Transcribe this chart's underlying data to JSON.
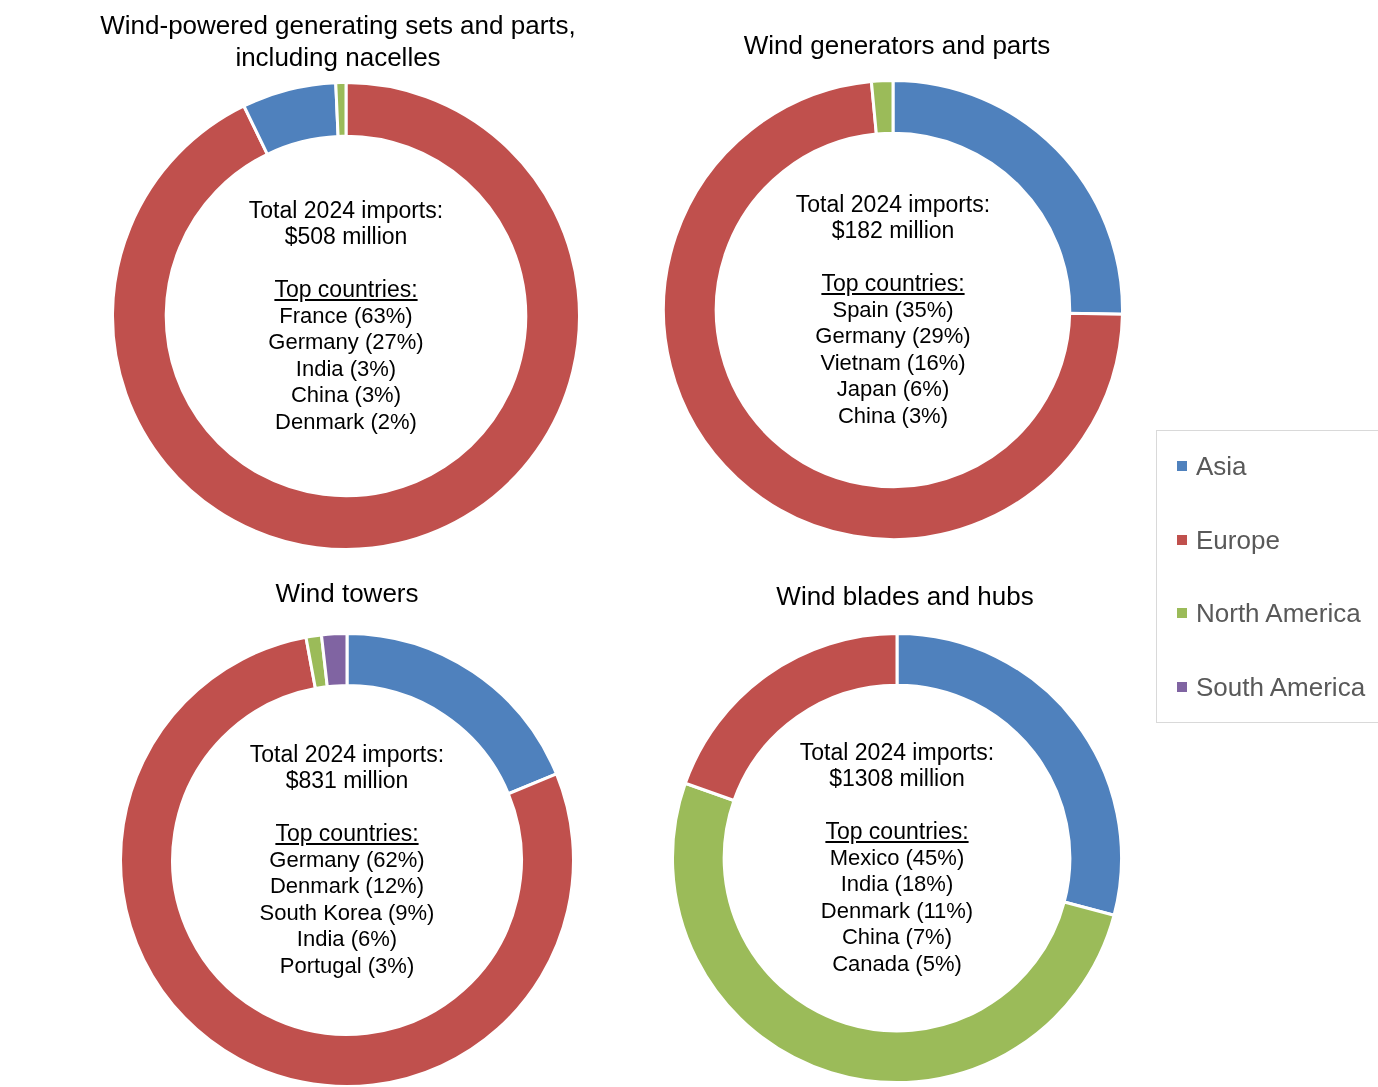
{
  "chart_data": [
    {
      "type": "donut",
      "title": "Wind-powered generating sets and parts, including nacelles",
      "categories": [
        null,
        null,
        null
      ],
      "values": [
        92.8,
        6.5,
        0.7
      ],
      "colors": [
        "#c0504d",
        "#4f81bd",
        "#9bbb59"
      ],
      "annotations": [
        "Total 2024 imports:",
        "$508 million",
        "Top countries:",
        "France (63%)",
        "Germany (27%)",
        "India (3%)",
        "China (3%)",
        "Denmark (2%)"
      ]
    },
    {
      "type": "donut",
      "title": "Wind generators and parts",
      "categories": [
        null,
        null,
        null
      ],
      "values": [
        25.3,
        73.2,
        1.5
      ],
      "colors": [
        "#4f81bd",
        "#c0504d",
        "#9bbb59"
      ],
      "annotations": [
        "Total 2024 imports:",
        "$182 million",
        "Top countries:",
        "Spain (35%)",
        "Germany (29%)",
        "Vietnam (16%)",
        "Japan (6%)",
        "China (3%)"
      ]
    },
    {
      "type": "donut",
      "title": "Wind towers",
      "categories": [
        "Asia",
        "Europe",
        "North America",
        "South America"
      ],
      "values": [
        18.8,
        78.3,
        1.1,
        1.8
      ],
      "colors": [
        "#4f81bd",
        "#c0504d",
        "#9bbb59",
        "#8064a2"
      ],
      "legend": "right",
      "annotations": [
        "Total 2024 imports:",
        "$831 million",
        "Top countries:",
        "Germany (62%)",
        "Denmark (12%)",
        "South Korea (9%)",
        "India (6%)",
        "Portugal (3%)"
      ]
    },
    {
      "type": "donut",
      "title": "Wind blades and hubs",
      "categories": [
        null,
        null,
        null
      ],
      "values": [
        29.1,
        51.3,
        19.6
      ],
      "colors": [
        "#4f81bd",
        "#9bbb59",
        "#c0504d"
      ],
      "annotations": [
        "Total 2024 imports:",
        "$1308 million",
        "Top countries:",
        "Mexico (45%)",
        "India (18%)",
        "Denmark (11%)",
        "China (7%)",
        "Canada (5%)"
      ]
    }
  ]
}
